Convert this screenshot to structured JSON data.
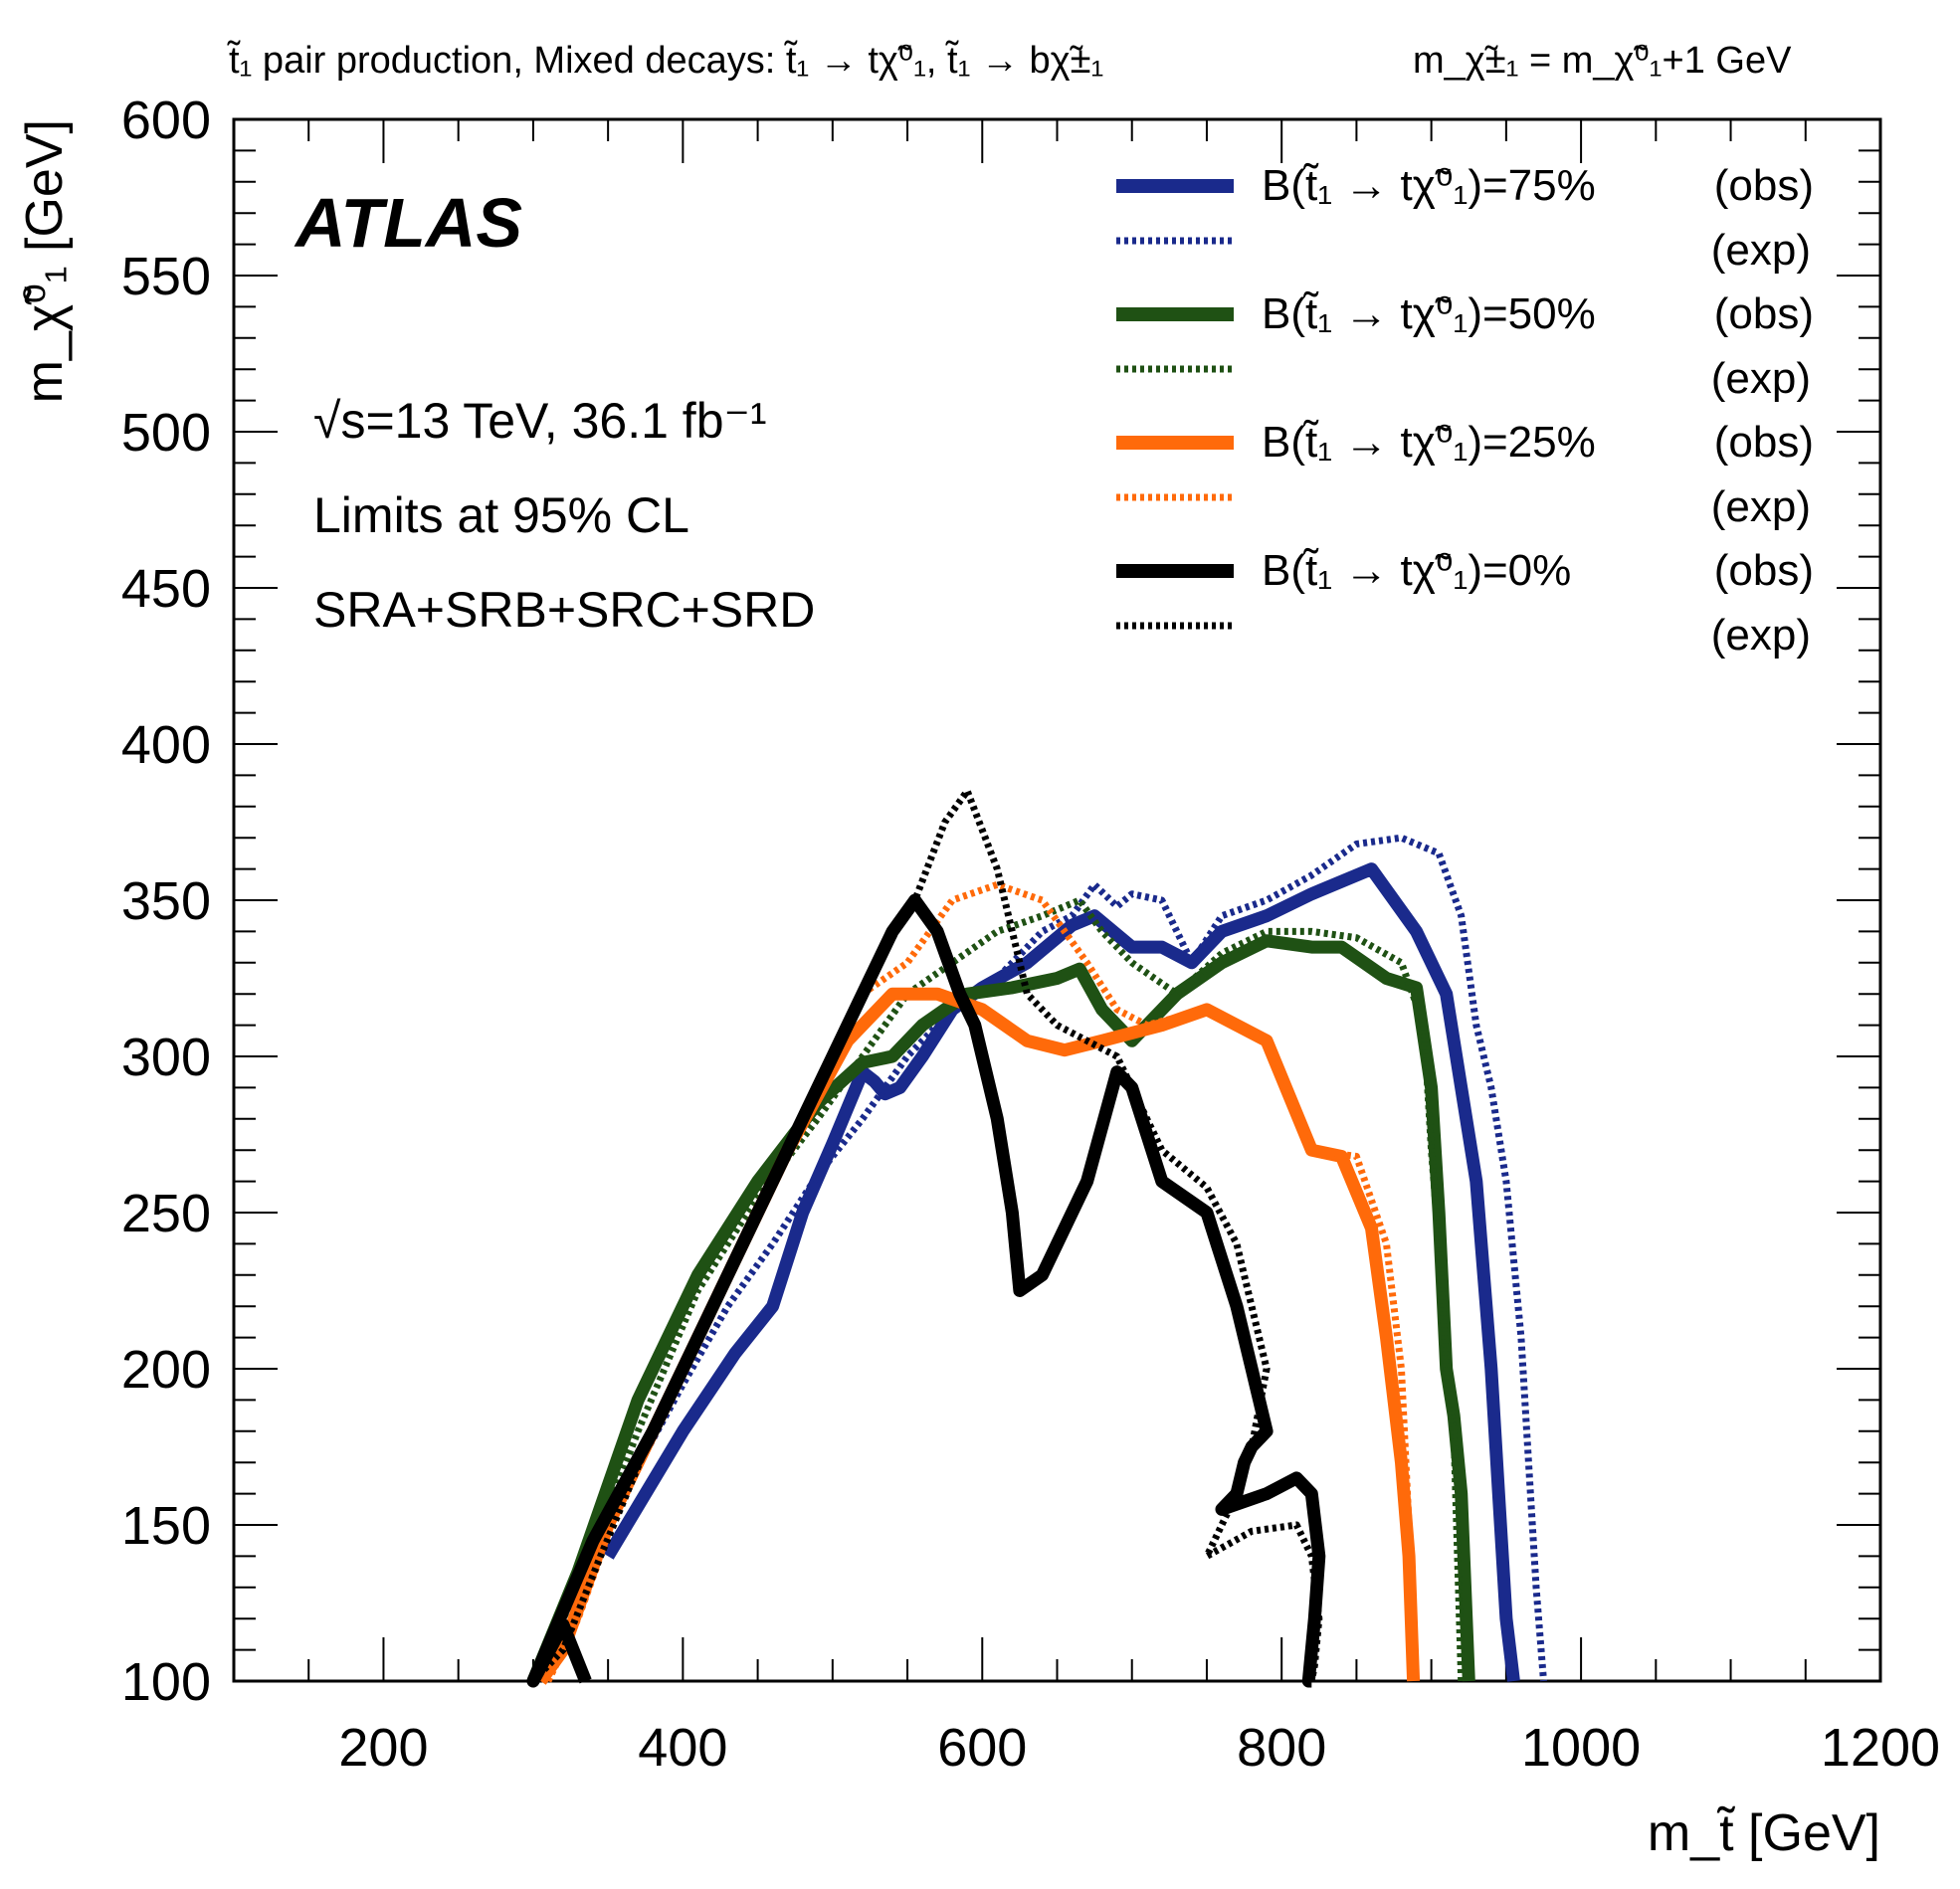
{
  "chart_data": {
    "type": "line",
    "title": "t̃₁ pair production, Mixed decays: t̃₁ → tχ̃⁰₁, t̃₁ → bχ̃±₁",
    "mass_relation": "m_χ̃±₁ = m_χ̃⁰₁+1 GeV",
    "experiment": "ATLAS",
    "annotations": [
      "√s=13 TeV, 36.1 fb⁻¹",
      "Limits at 95% CL",
      "SRA+SRB+SRC+SRD"
    ],
    "xlabel": "m_t̃ [GeV]",
    "ylabel": "m_χ̃⁰₁ [GeV]",
    "xlim": [
      100,
      1200
    ],
    "ylim": [
      100,
      600
    ],
    "xticks": [
      200,
      400,
      600,
      800,
      1000,
      1200
    ],
    "yticks": [
      100,
      150,
      200,
      250,
      300,
      350,
      400,
      450,
      500,
      550,
      600
    ],
    "legend_placement": "top-right",
    "legend": [
      {
        "label": "B(t̃₁ → tχ̃⁰₁)=75%",
        "tag": "(obs)",
        "exp_tag": "(exp)"
      },
      {
        "label": "B(t̃₁ → tχ̃⁰₁)=50%",
        "tag": "(obs)",
        "exp_tag": "(exp)"
      },
      {
        "label": "B(t̃₁ → tχ̃⁰₁)=25%",
        "tag": "(obs)",
        "exp_tag": "(exp)"
      },
      {
        "label": "B(t̃₁ → tχ̃⁰₁)=0%",
        "tag": "(obs)",
        "exp_tag": "(exp)"
      }
    ],
    "series": [
      {
        "branching": "75%",
        "kind": "obs",
        "color": "#1a2a8c",
        "x": [
          350,
          400,
          435,
          460,
          480,
          500,
          520,
          528,
          535,
          545,
          560,
          580,
          600,
          630,
          660,
          675,
          700,
          720,
          740,
          760,
          790,
          820,
          860,
          890,
          910,
          920,
          930,
          940,
          945,
          950,
          955
        ],
        "y": [
          140,
          180,
          205,
          220,
          250,
          272,
          295,
          292,
          288,
          290,
          300,
          315,
          322,
          330,
          342,
          345,
          335,
          335,
          330,
          340,
          345,
          352,
          360,
          340,
          320,
          290,
          260,
          200,
          160,
          120,
          100
        ]
      },
      {
        "branching": "75%",
        "kind": "exp",
        "color": "#1a2a8c",
        "x": [
          360,
          400,
          430,
          460,
          490,
          520,
          550,
          580,
          610,
          640,
          660,
          675,
          690,
          700,
          720,
          730,
          740,
          760,
          790,
          820,
          850,
          880,
          905,
          920,
          930,
          940,
          950,
          960,
          965,
          970,
          975
        ],
        "y": [
          160,
          195,
          220,
          240,
          262,
          280,
          300,
          315,
          325,
          340,
          345,
          355,
          348,
          352,
          350,
          340,
          330,
          345,
          350,
          358,
          368,
          370,
          365,
          345,
          310,
          290,
          260,
          210,
          170,
          130,
          100
        ]
      },
      {
        "branching": "50%",
        "kind": "obs",
        "color": "#1f5114",
        "x": [
          300,
          330,
          370,
          410,
          450,
          490,
          520,
          540,
          560,
          590,
          620,
          650,
          665,
          680,
          700,
          730,
          760,
          790,
          820,
          840,
          870,
          890,
          900,
          905,
          910,
          915,
          920,
          925
        ],
        "y": [
          100,
          135,
          190,
          230,
          260,
          285,
          298,
          300,
          310,
          320,
          322,
          325,
          328,
          315,
          305,
          320,
          330,
          337,
          335,
          335,
          325,
          322,
          290,
          250,
          200,
          185,
          160,
          100
        ]
      },
      {
        "branching": "50%",
        "kind": "exp",
        "color": "#1f5114",
        "x": [
          300,
          330,
          370,
          410,
          450,
          490,
          520,
          550,
          580,
          610,
          640,
          665,
          680,
          700,
          730,
          760,
          790,
          820,
          850,
          880,
          895,
          900,
          905,
          910,
          915,
          920
        ],
        "y": [
          100,
          130,
          180,
          225,
          255,
          280,
          300,
          320,
          330,
          340,
          345,
          350,
          340,
          330,
          320,
          333,
          340,
          340,
          338,
          330,
          310,
          270,
          240,
          200,
          180,
          100
        ]
      },
      {
        "branching": "25%",
        "kind": "obs",
        "color": "#ff6a0a",
        "x": [
          305,
          320,
          350,
          390,
          430,
          470,
          510,
          540,
          570,
          600,
          630,
          655,
          680,
          720,
          750,
          790,
          820,
          840,
          860,
          870,
          880,
          885,
          888
        ],
        "y": [
          100,
          110,
          150,
          190,
          230,
          270,
          305,
          320,
          320,
          315,
          305,
          302,
          305,
          310,
          315,
          305,
          270,
          268,
          245,
          210,
          170,
          140,
          100
        ]
      },
      {
        "branching": "25%",
        "kind": "exp",
        "color": "#ff6a0a",
        "x": [
          310,
          330,
          360,
          400,
          440,
          480,
          520,
          550,
          580,
          610,
          640,
          670,
          690,
          710,
          750,
          790,
          820,
          850,
          870,
          880,
          885,
          888
        ],
        "y": [
          100,
          120,
          160,
          200,
          240,
          280,
          320,
          330,
          350,
          355,
          350,
          330,
          315,
          310,
          315,
          305,
          270,
          268,
          240,
          200,
          150,
          100
        ]
      },
      {
        "branching": "0%",
        "kind": "obs",
        "color": "#000000",
        "x": [
          335,
          320,
          300,
          340,
          380,
          420,
          460,
          500,
          520,
          540,
          555,
          570,
          585,
          595,
          610,
          620,
          625,
          640,
          670,
          690,
          700,
          720,
          750,
          770,
          780,
          790,
          780,
          775,
          770,
          760,
          790,
          810,
          820,
          825,
          822,
          818,
          820
        ],
        "y": [
          100,
          118,
          100,
          145,
          180,
          220,
          260,
          300,
          320,
          340,
          350,
          340,
          320,
          310,
          280,
          250,
          225,
          230,
          260,
          295,
          290,
          260,
          250,
          220,
          200,
          180,
          175,
          170,
          160,
          155,
          160,
          165,
          160,
          140,
          120,
          100,
          100
        ]
      },
      {
        "branching": "0%",
        "kind": "exp",
        "color": "#000000",
        "x": [
          300,
          320,
          345,
          380,
          420,
          460,
          500,
          530,
          555,
          575,
          590,
          610,
          620,
          630,
          650,
          670,
          690,
          700,
          720,
          750,
          770,
          790,
          780,
          770,
          760,
          750,
          780,
          810,
          820,
          825,
          822,
          820
        ],
        "y": [
          100,
          110,
          140,
          180,
          220,
          260,
          300,
          330,
          350,
          375,
          385,
          360,
          340,
          320,
          310,
          305,
          300,
          290,
          270,
          258,
          240,
          200,
          175,
          160,
          150,
          140,
          148,
          150,
          140,
          120,
          105,
          100
        ]
      }
    ]
  }
}
